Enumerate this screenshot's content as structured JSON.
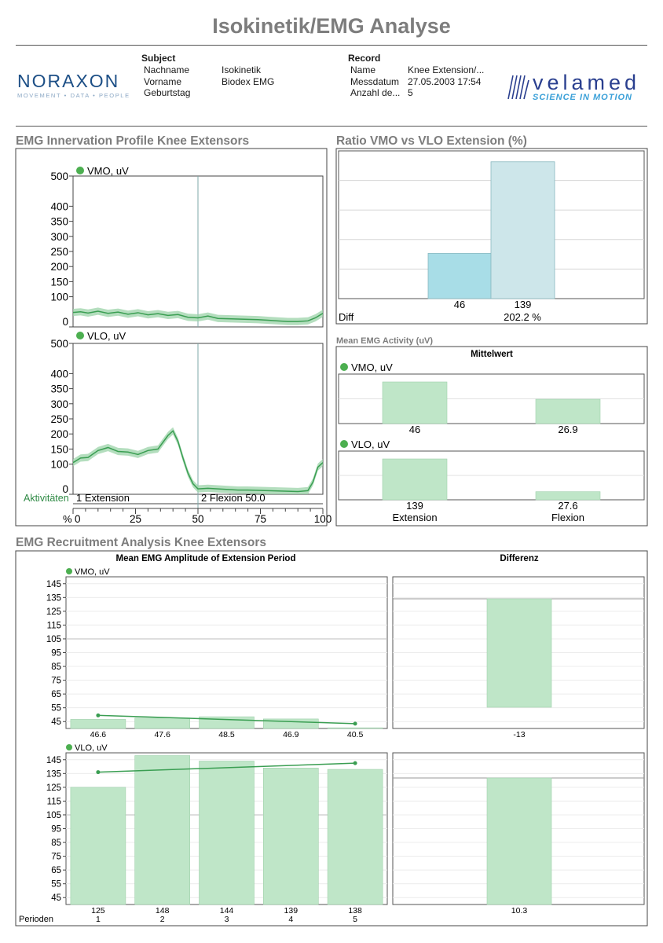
{
  "title": "Isokinetik/EMG Analyse",
  "header": {
    "brand_left": {
      "name": "NORAXON",
      "tagline": "MOVEMENT • DATA • PEOPLE"
    },
    "brand_right": {
      "name": "velamed",
      "tagline": "SCIENCE IN MOTION"
    },
    "subject": {
      "heading": "Subject",
      "rows": [
        {
          "label": "Nachname",
          "value": "Isokinetik"
        },
        {
          "label": "Vorname",
          "value": "Biodex EMG"
        },
        {
          "label": "Geburtstag",
          "value": ""
        }
      ]
    },
    "record": {
      "heading": "Record",
      "rows": [
        {
          "label": "Name",
          "value": "Knee Extension/..."
        },
        {
          "label": "Messdatum",
          "value": "27.05.2003 17:54"
        },
        {
          "label": "Anzahl de...",
          "value": "5"
        }
      ]
    }
  },
  "colors": {
    "green_line": "#3a9e52",
    "band": "#9bd3a8",
    "bar": "#bfe6c8",
    "bar_vmo_ratio": "#a8dde7",
    "bar_vlo_ratio": "#cde6ea",
    "dot": "#4caf50"
  },
  "chart_data": [
    {
      "id": "innervation",
      "type": "line",
      "title": "EMG Innervation Profile Knee Extensors",
      "x_unit": "%",
      "xlim": [
        0,
        100
      ],
      "x_ticks": [
        0,
        25,
        50,
        75,
        100
      ],
      "ylim": [
        0,
        500
      ],
      "y_ticks": [
        0,
        100,
        150,
        200,
        250,
        300,
        350,
        400,
        500
      ],
      "divider_x": 50,
      "activities_label": "Aktivitäten",
      "periods": [
        {
          "label": "1 Extension"
        },
        {
          "label": "2 Flexion 50.0"
        }
      ],
      "series": [
        {
          "name": "VMO, uV",
          "x": [
            0,
            3,
            6,
            10,
            14,
            18,
            22,
            26,
            30,
            34,
            38,
            42,
            46,
            50,
            54,
            58,
            62,
            66,
            70,
            74,
            78,
            82,
            86,
            90,
            94,
            97,
            100
          ],
          "y": [
            48,
            50,
            46,
            52,
            45,
            49,
            42,
            47,
            40,
            44,
            38,
            41,
            32,
            30,
            36,
            28,
            27,
            26,
            25,
            24,
            22,
            20,
            18,
            18,
            20,
            30,
            45
          ]
        },
        {
          "name": "VLO, uV",
          "x": [
            0,
            3,
            6,
            10,
            14,
            18,
            22,
            26,
            30,
            34,
            38,
            40,
            42,
            44,
            46,
            48,
            50,
            54,
            58,
            62,
            66,
            70,
            74,
            78,
            82,
            86,
            90,
            94,
            96,
            98,
            100
          ],
          "y": [
            105,
            120,
            122,
            145,
            155,
            142,
            140,
            132,
            145,
            150,
            195,
            210,
            175,
            120,
            70,
            35,
            18,
            20,
            18,
            16,
            14,
            14,
            13,
            12,
            11,
            10,
            9,
            12,
            40,
            90,
            105
          ]
        }
      ]
    },
    {
      "id": "ratio",
      "type": "bar",
      "title": "Ratio VMO vs VLO Extension (%)",
      "categories": [
        "VMO",
        "VLO"
      ],
      "values": [
        46,
        139
      ],
      "ylim": [
        0,
        150
      ],
      "diff_label": "Diff",
      "diff_value": "202.2 %"
    },
    {
      "id": "mean_activity",
      "type": "bar",
      "title": "Mean EMG Activity  (uV)",
      "column_header": "Mittelwert",
      "categories": [
        "Extension",
        "Flexion"
      ],
      "series": [
        {
          "name": "VMO, uV",
          "values": [
            46,
            26.9
          ]
        },
        {
          "name": "VLO, uV",
          "values": [
            139,
            27.6
          ]
        }
      ]
    },
    {
      "id": "recruitment",
      "type": "bar",
      "title": "EMG Recruitment Analysis Knee Extensors",
      "subtitle": "Mean EMG Amplitude of Extension Period",
      "diff_header": "Differenz",
      "period_label": "Perioden",
      "categories": [
        "1",
        "2",
        "3",
        "4",
        "5"
      ],
      "ylim": [
        40,
        150
      ],
      "y_ticks": [
        45,
        55,
        65,
        75,
        85,
        95,
        105,
        115,
        125,
        135,
        145
      ],
      "series": [
        {
          "name": "VMO, uV",
          "values": [
            46.6,
            47.6,
            48.5,
            46.9,
            40.5
          ],
          "trend": [
            49.5,
            43.5
          ],
          "diff": -13
        },
        {
          "name": "VLO, uV",
          "values": [
            125,
            148,
            144,
            139,
            138
          ],
          "trend": [
            136,
            142.5
          ],
          "diff": 10.3
        }
      ]
    }
  ]
}
